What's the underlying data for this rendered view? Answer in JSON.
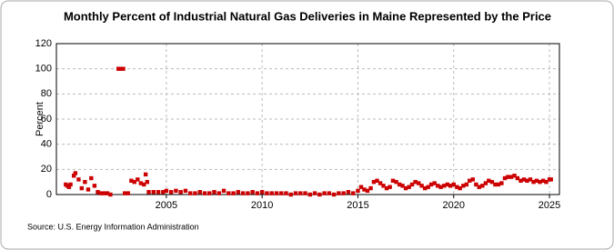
{
  "chart_data": {
    "type": "scatter",
    "title": "Monthly Percent of Industrial Natural Gas Deliveries in Maine Represented by the Price",
    "y_label": "Percent",
    "source": "Source: U.S. Energy Information Administration",
    "color": "#cc0000",
    "grid": true,
    "xlim": [
      1999.26,
      2025.52
    ],
    "ylim": [
      0,
      120
    ],
    "xticks": [
      2005,
      2010,
      2015,
      2020,
      2025
    ],
    "yticks": [
      0,
      20,
      40,
      60,
      80,
      100,
      120
    ],
    "x": [
      1999.75,
      1999.83,
      1999.92,
      2000.0,
      2000.17,
      2000.25,
      2000.42,
      2000.58,
      2000.75,
      2000.92,
      2001.08,
      2001.25,
      2001.42,
      2001.58,
      2001.75,
      2001.92,
      2002.08,
      2002.5,
      2002.58,
      2002.75,
      2002.83,
      2003.0,
      2003.17,
      2003.33,
      2003.5,
      2003.67,
      2003.83,
      2003.92,
      2004.0,
      2004.08,
      2004.33,
      2004.58,
      2004.83,
      2005.0,
      2005.25,
      2005.5,
      2005.75,
      2006.0,
      2006.25,
      2006.5,
      2006.75,
      2007.0,
      2007.25,
      2007.5,
      2007.75,
      2008.0,
      2008.25,
      2008.5,
      2008.75,
      2009.0,
      2009.25,
      2009.5,
      2009.75,
      2010.0,
      2010.25,
      2010.5,
      2010.75,
      2011.0,
      2011.25,
      2011.5,
      2011.75,
      2012.0,
      2012.25,
      2012.5,
      2012.75,
      2013.0,
      2013.25,
      2013.5,
      2013.75,
      2014.0,
      2014.25,
      2014.5,
      2014.75,
      2015.0,
      2015.17,
      2015.33,
      2015.5,
      2015.67,
      2015.83,
      2016.0,
      2016.17,
      2016.33,
      2016.5,
      2016.67,
      2016.83,
      2017.0,
      2017.17,
      2017.33,
      2017.5,
      2017.67,
      2017.83,
      2018.0,
      2018.17,
      2018.33,
      2018.5,
      2018.67,
      2018.83,
      2019.0,
      2019.17,
      2019.33,
      2019.5,
      2019.67,
      2019.83,
      2020.0,
      2020.17,
      2020.33,
      2020.5,
      2020.67,
      2020.83,
      2021.0,
      2021.17,
      2021.33,
      2021.5,
      2021.67,
      2021.83,
      2022.0,
      2022.17,
      2022.33,
      2022.5,
      2022.67,
      2022.83,
      2023.0,
      2023.17,
      2023.33,
      2023.5,
      2023.67,
      2023.83,
      2024.0,
      2024.17,
      2024.33,
      2024.5,
      2024.67,
      2024.83,
      2025.0,
      2025.08
    ],
    "values": [
      8,
      7,
      6,
      8,
      15,
      17,
      12,
      5,
      10,
      4,
      13,
      7,
      2,
      1,
      1,
      1,
      0,
      100,
      100,
      100,
      1,
      1,
      11,
      10,
      12,
      9,
      8,
      16,
      10,
      2,
      2,
      2,
      2,
      3,
      2,
      3,
      2,
      3,
      1,
      1,
      2,
      1,
      1,
      2,
      1,
      3,
      1,
      1,
      2,
      1,
      1,
      2,
      1,
      2,
      1,
      1,
      1,
      1,
      1,
      0,
      1,
      1,
      1,
      0,
      1,
      0,
      1,
      1,
      0,
      1,
      1,
      2,
      1,
      3,
      6,
      4,
      3,
      5,
      10,
      11,
      9,
      7,
      5,
      6,
      11,
      10,
      8,
      7,
      5,
      6,
      8,
      10,
      9,
      7,
      5,
      6,
      8,
      9,
      7,
      6,
      7,
      8,
      7,
      8,
      6,
      5,
      7,
      8,
      11,
      12,
      8,
      6,
      7,
      9,
      11,
      10,
      8,
      8,
      9,
      13,
      14,
      14,
      15,
      13,
      11,
      12,
      11,
      12,
      10,
      11,
      10,
      11,
      10,
      12,
      12
    ]
  }
}
